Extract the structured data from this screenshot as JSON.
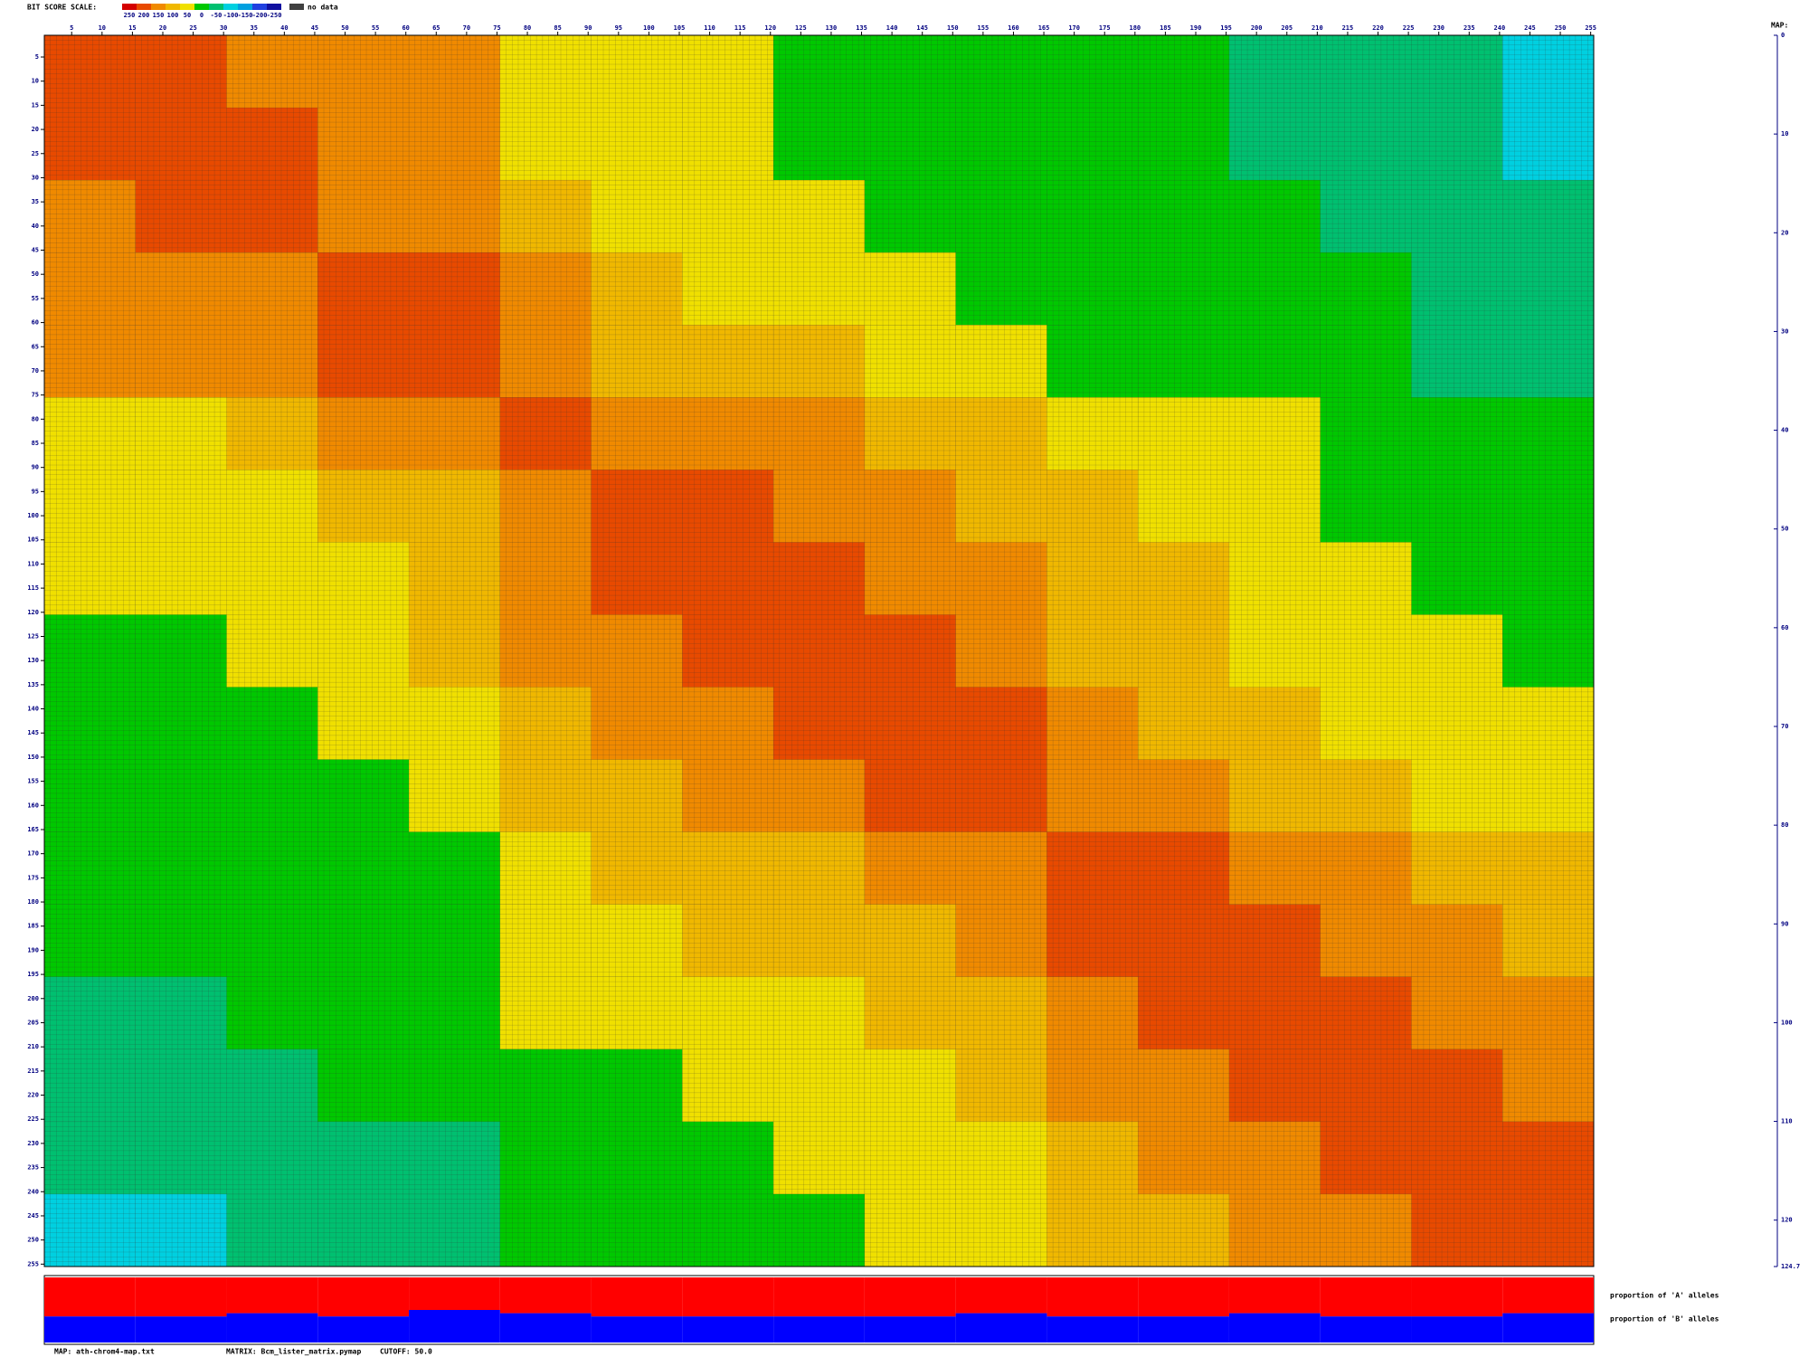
{
  "chart_data": {
    "type": "heatmap",
    "legend_title": "BIT SCORE SCALE:",
    "legend_values": [
      250,
      200,
      150,
      100,
      50,
      0,
      -50,
      -100,
      -150,
      -200,
      -250
    ],
    "legend_colors": [
      "#d40000",
      "#e84a00",
      "#f08a00",
      "#f0b800",
      "#f0e000",
      "#00c800",
      "#00c070",
      "#00d0e0",
      "#00a0e0",
      "#2040e0",
      "#1010a0"
    ],
    "no_data_label": "no data",
    "no_data_color": "#404040",
    "xlim": [
      0.5,
      255.5
    ],
    "ylim": [
      0.5,
      255.5
    ],
    "xticks": [
      5,
      10,
      15,
      20,
      25,
      30,
      35,
      40,
      45,
      50,
      55,
      60,
      65,
      70,
      75,
      80,
      85,
      90,
      95,
      100,
      105,
      110,
      115,
      120,
      125,
      130,
      135,
      140,
      145,
      150,
      155,
      160,
      165,
      170,
      175,
      180,
      185,
      190,
      195,
      200,
      205,
      210,
      215,
      220,
      225,
      230,
      235,
      240,
      245,
      250,
      255
    ],
    "yticks": [
      5,
      10,
      15,
      20,
      25,
      30,
      35,
      40,
      45,
      50,
      55,
      60,
      65,
      70,
      75,
      80,
      85,
      90,
      95,
      100,
      105,
      110,
      115,
      120,
      125,
      130,
      135,
      140,
      145,
      150,
      155,
      160,
      165,
      170,
      175,
      180,
      185,
      190,
      195,
      200,
      205,
      210,
      215,
      220,
      225,
      230,
      235,
      240,
      245,
      250,
      255
    ],
    "bins": [
      0.5,
      15.5,
      30.5,
      45.5,
      60.5,
      75.5,
      90.5,
      105.5,
      120.5,
      135.5,
      150.5,
      165.5,
      180.5,
      195.5,
      210.5,
      225.5,
      240.5,
      255.5
    ],
    "values": [
      [
        220,
        210,
        190,
        170,
        150,
        80,
        60,
        50,
        40,
        20,
        10,
        0,
        0,
        -10,
        -30,
        -50,
        -60
      ],
      [
        210,
        220,
        200,
        180,
        160,
        90,
        70,
        60,
        45,
        25,
        15,
        5,
        0,
        -10,
        -30,
        -50,
        -60
      ],
      [
        190,
        200,
        220,
        190,
        170,
        110,
        90,
        70,
        60,
        40,
        25,
        10,
        5,
        0,
        -20,
        -40,
        -50
      ],
      [
        170,
        180,
        190,
        220,
        200,
        150,
        110,
        90,
        80,
        60,
        40,
        25,
        20,
        10,
        0,
        -20,
        -30
      ],
      [
        150,
        160,
        170,
        200,
        220,
        180,
        140,
        110,
        100,
        80,
        60,
        40,
        30,
        20,
        10,
        -10,
        -20
      ],
      [
        80,
        90,
        110,
        150,
        180,
        220,
        190,
        170,
        150,
        120,
        100,
        80,
        60,
        50,
        30,
        10,
        0
      ],
      [
        60,
        70,
        90,
        110,
        140,
        190,
        220,
        200,
        180,
        150,
        120,
        100,
        80,
        60,
        40,
        20,
        10
      ],
      [
        50,
        60,
        70,
        90,
        110,
        170,
        200,
        220,
        210,
        190,
        160,
        120,
        100,
        80,
        60,
        40,
        30
      ],
      [
        40,
        45,
        60,
        80,
        100,
        150,
        180,
        210,
        220,
        210,
        180,
        140,
        110,
        90,
        70,
        50,
        40
      ],
      [
        20,
        25,
        40,
        60,
        80,
        120,
        150,
        190,
        210,
        220,
        200,
        160,
        130,
        110,
        90,
        70,
        60
      ],
      [
        10,
        15,
        25,
        40,
        60,
        100,
        120,
        160,
        180,
        200,
        220,
        190,
        160,
        140,
        110,
        90,
        80
      ],
      [
        0,
        5,
        10,
        25,
        40,
        80,
        100,
        120,
        140,
        160,
        190,
        220,
        200,
        170,
        150,
        120,
        100
      ],
      [
        0,
        0,
        5,
        20,
        30,
        60,
        80,
        100,
        110,
        130,
        160,
        200,
        220,
        200,
        180,
        150,
        130
      ],
      [
        -10,
        -10,
        0,
        10,
        20,
        50,
        60,
        80,
        90,
        110,
        140,
        170,
        200,
        220,
        210,
        180,
        160
      ],
      [
        -30,
        -30,
        -20,
        0,
        10,
        30,
        40,
        60,
        70,
        90,
        110,
        150,
        180,
        210,
        220,
        200,
        180
      ],
      [
        -50,
        -50,
        -40,
        -20,
        -10,
        10,
        20,
        40,
        50,
        70,
        90,
        120,
        150,
        180,
        200,
        220,
        210
      ],
      [
        -60,
        -60,
        -50,
        -30,
        -20,
        0,
        10,
        30,
        40,
        60,
        80,
        100,
        130,
        160,
        180,
        210,
        220
      ]
    ],
    "map_title": "MAP:",
    "map_ylim": [
      0,
      124.7
    ],
    "map_ticks": [
      0,
      10,
      20,
      30,
      40,
      50,
      60,
      70,
      80,
      90,
      100,
      110,
      120,
      124.7
    ],
    "allele_series": [
      {
        "name": "proportion of 'A' alleles",
        "color": "#ff0000",
        "values": [
          0.6,
          0.6,
          0.55,
          0.6,
          0.5,
          0.55,
          0.6,
          0.6,
          0.6,
          0.6,
          0.55,
          0.6,
          0.6,
          0.55,
          0.6,
          0.6,
          0.55
        ]
      },
      {
        "name": "proportion of 'B' alleles",
        "color": "#0000ff",
        "values": [
          0.4,
          0.4,
          0.45,
          0.4,
          0.5,
          0.45,
          0.4,
          0.4,
          0.4,
          0.4,
          0.45,
          0.4,
          0.4,
          0.45,
          0.4,
          0.4,
          0.45
        ]
      }
    ],
    "footer_map": "MAP: ath-chrom4-map.txt",
    "footer_matrix": "MATRIX: Bcm_lister_matrix.pymap",
    "footer_cutoff": "CUTOFF: 50.0"
  }
}
